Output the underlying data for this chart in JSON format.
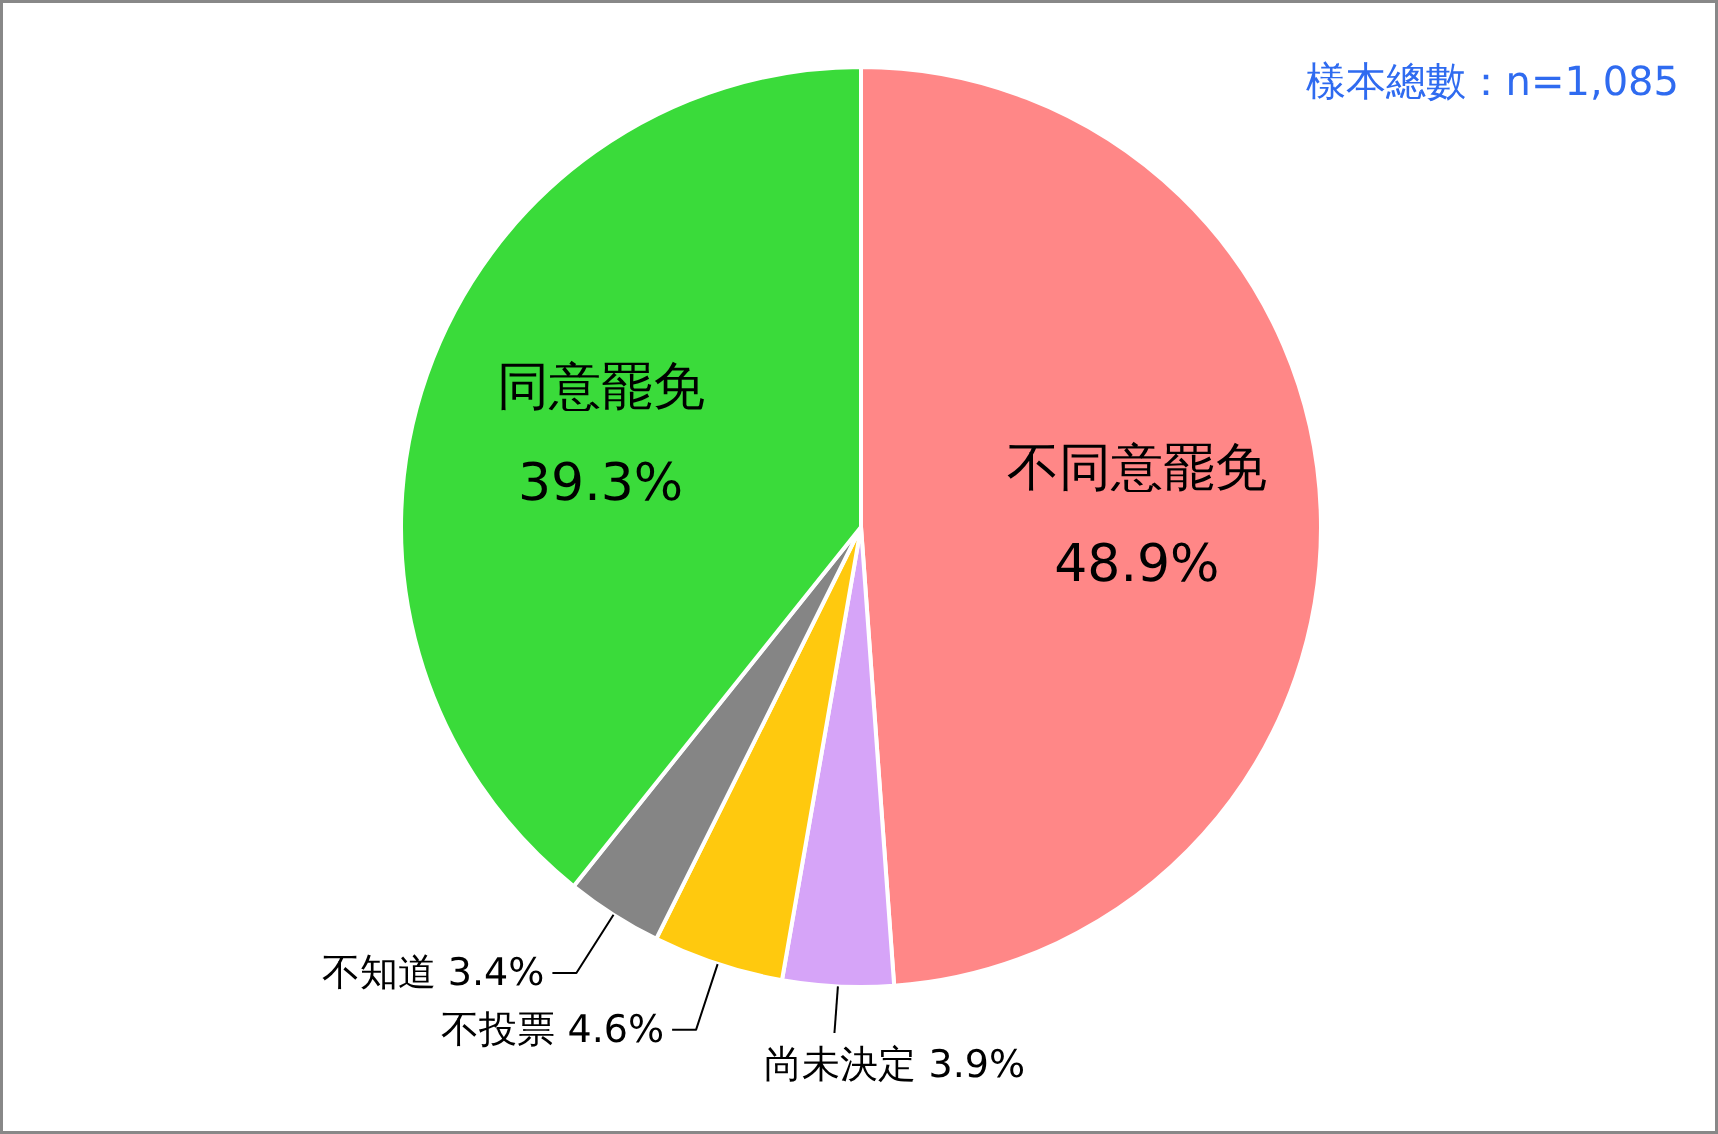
{
  "chart_data": {
    "type": "pie",
    "categories": [
      "不同意罷免",
      "尚未決定",
      "不投票",
      "不知道",
      "同意罷免"
    ],
    "values": [
      48.9,
      3.9,
      4.6,
      3.4,
      39.3
    ],
    "colors": [
      "#ff8787",
      "#d6a4f8",
      "#ffc90e",
      "#858585",
      "#3adb3a"
    ],
    "value_labels": [
      "48.9%",
      "3.9%",
      "4.6%",
      "3.4%",
      "39.3%"
    ],
    "annotations": [
      "樣本總數：n=1,085"
    ]
  }
}
